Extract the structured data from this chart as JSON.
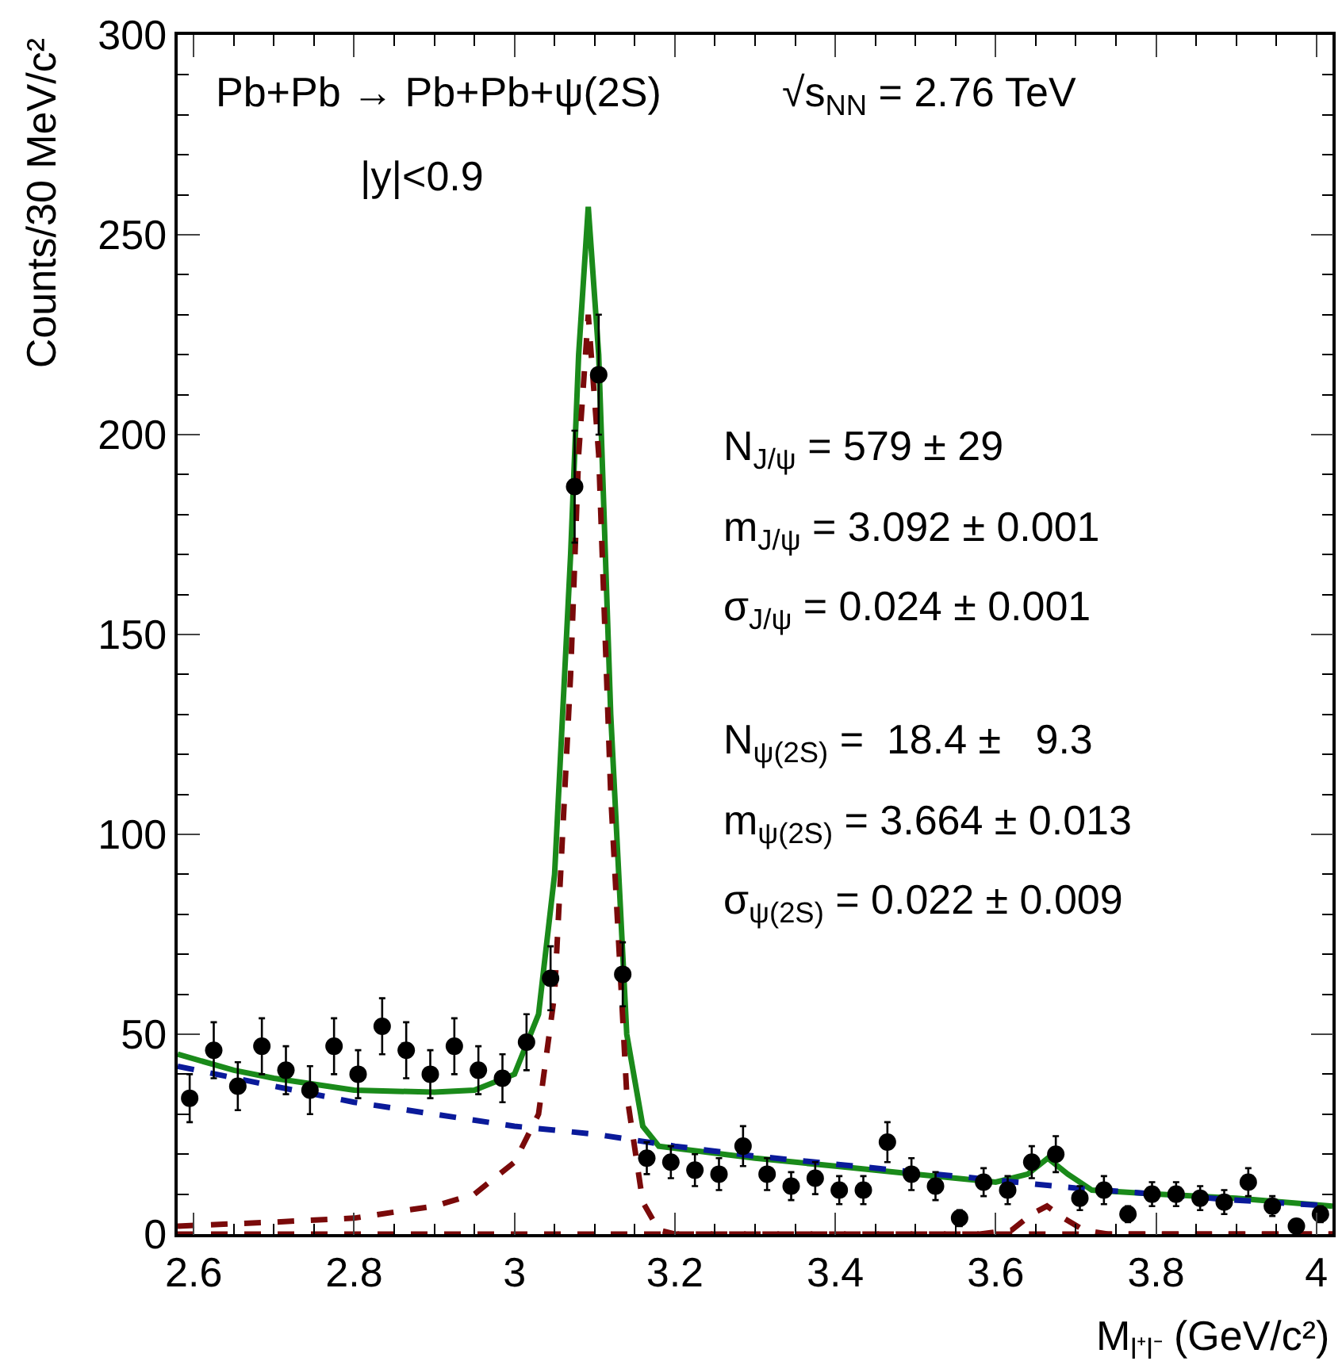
{
  "chart_data": {
    "type": "scatter",
    "xlabel": "M$_{l⁺l⁻}$ (GeV/c²)",
    "ylabel": "Counts/30 MeV/c²",
    "xlim": [
      2.58,
      4.02
    ],
    "ylim": [
      0,
      300
    ],
    "xticks": [
      2.6,
      2.8,
      3,
      3.2,
      3.4,
      3.6,
      3.8,
      4
    ],
    "yticks": [
      0,
      50,
      100,
      150,
      200,
      250,
      300
    ],
    "series": [
      {
        "color": "#000000",
        "marker": "circle",
        "x": [
          2.595,
          2.625,
          2.655,
          2.685,
          2.715,
          2.745,
          2.775,
          2.805,
          2.835,
          2.865,
          2.895,
          2.925,
          2.955,
          2.985,
          3.015,
          3.045,
          3.075,
          3.105,
          3.135,
          3.165,
          3.195,
          3.225,
          3.255,
          3.285,
          3.315,
          3.345,
          3.375,
          3.405,
          3.435,
          3.465,
          3.495,
          3.525,
          3.555,
          3.585,
          3.615,
          3.645,
          3.675,
          3.705,
          3.735,
          3.765,
          3.795,
          3.825,
          3.855,
          3.885,
          3.915,
          3.945,
          3.975,
          4.005
        ],
        "values": [
          34,
          46,
          37,
          47,
          41,
          36,
          47,
          40,
          52,
          46,
          40,
          47,
          41,
          39,
          48,
          64,
          187,
          215,
          65,
          19,
          18,
          16,
          15,
          22,
          15,
          12,
          14,
          11,
          11,
          23,
          15,
          12,
          4,
          13,
          11,
          18,
          20,
          9,
          11,
          5,
          10,
          10,
          9,
          8,
          13,
          7,
          2,
          5
        ],
        "errors": [
          6,
          7,
          6,
          7,
          6,
          6,
          7,
          6,
          7,
          7,
          6,
          7,
          6,
          6,
          7,
          8,
          14,
          15,
          8,
          4,
          4,
          4,
          4,
          5,
          4,
          3.5,
          4,
          3.5,
          3.5,
          5,
          4,
          3.5,
          2,
          3.5,
          3.5,
          4,
          4.5,
          3,
          3.5,
          2,
          3,
          3,
          3,
          3,
          3.5,
          2.5,
          1.5,
          2
        ]
      },
      {
        "type": "line",
        "color": "#1a8a1a",
        "line_style": "solid",
        "x": [
          2.58,
          2.65,
          2.7,
          2.8,
          2.9,
          2.95,
          3.0,
          3.03,
          3.05,
          3.07,
          3.08,
          3.092,
          3.105,
          3.12,
          3.14,
          3.16,
          3.18,
          3.3,
          3.4,
          3.5,
          3.6,
          3.64,
          3.665,
          3.69,
          3.72,
          3.8,
          3.9,
          4.02
        ],
        "values": [
          45,
          41,
          39,
          36,
          35.5,
          36,
          40,
          55,
          90,
          170,
          220,
          257,
          220,
          130,
          50,
          27,
          22,
          19,
          17,
          15,
          13,
          15,
          19,
          15,
          11,
          10,
          9,
          7
        ]
      },
      {
        "type": "line",
        "color": "#0a1a9a",
        "line_style": "dashed",
        "x": [
          2.58,
          2.7,
          2.8,
          2.9,
          3.0,
          3.1,
          3.2,
          3.3,
          3.4,
          3.5,
          3.6,
          3.7,
          3.8,
          3.9,
          4.02
        ],
        "values": [
          42,
          37,
          33,
          30,
          27,
          25,
          22,
          19.5,
          17.5,
          15.5,
          13.5,
          11.5,
          10,
          8.5,
          7
        ]
      },
      {
        "type": "line",
        "color": "#7a0a0a",
        "line_style": "dashed",
        "x": [
          2.58,
          2.7,
          2.8,
          2.9,
          2.95,
          3.0,
          3.03,
          3.05,
          3.07,
          3.08,
          3.092,
          3.105,
          3.12,
          3.14,
          3.16,
          3.18,
          3.2,
          4.02
        ],
        "values": [
          2,
          3,
          4,
          7,
          10,
          18,
          30,
          60,
          140,
          195,
          230,
          195,
          110,
          35,
          8,
          1,
          0,
          0
        ]
      },
      {
        "type": "line",
        "color": "#7a0a0a",
        "line_style": "dashed",
        "x": [
          2.58,
          3.58,
          3.62,
          3.645,
          3.664,
          3.685,
          3.71,
          3.74,
          4.02
        ],
        "values": [
          0,
          0,
          1,
          5,
          7,
          4,
          1,
          0,
          0
        ]
      }
    ],
    "annotations": [
      "Pb+Pb → Pb+Pb+ψ(2S)",
      "√s$_{NN}$ = 2.76 TeV",
      "|y|<0.9",
      "N$_{J/ψ}$ = 579 ± 29",
      "m$_{J/ψ}$ = 3.092 ± 0.001",
      "σ$_{J/ψ}$ = 0.024 ± 0.001",
      "N$_{ψ(2S)}$ =  18.4 ±   9.3",
      "m$_{ψ(2S)}$ = 3.664 ± 0.013",
      "σ$_{ψ(2S)}$ = 0.022 ± 0.009"
    ]
  }
}
